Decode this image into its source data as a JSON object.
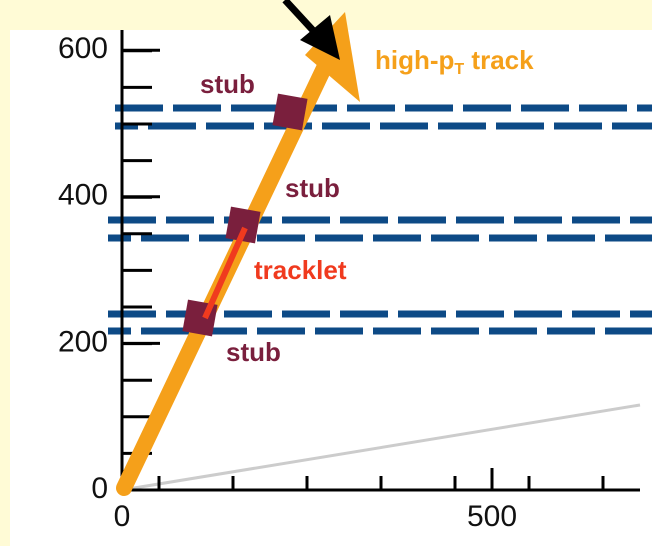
{
  "axes": {
    "xticks": [
      0,
      500
    ],
    "yticks": [
      0,
      200,
      400,
      600
    ]
  },
  "track_label": [
    "high-p",
    "T",
    " track"
  ],
  "stubs": [
    "stub",
    "stub",
    "stub"
  ],
  "tracklet": "tracklet"
}
